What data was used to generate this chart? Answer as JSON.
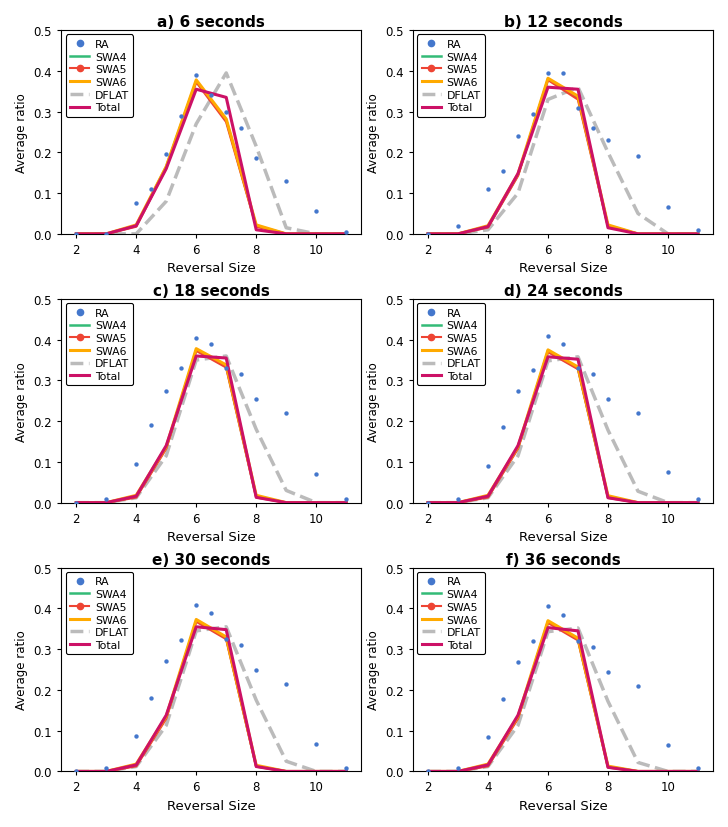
{
  "titles": [
    "a) 6 seconds",
    "b) 12 seconds",
    "c) 18 seconds",
    "d) 24 seconds",
    "e) 30 seconds",
    "f) 36 seconds"
  ],
  "x": [
    2,
    3,
    4,
    4.5,
    5,
    5.5,
    6,
    6.5,
    7,
    7.5,
    8,
    9,
    10,
    11
  ],
  "SWA4": {
    "6": [
      0.0,
      0.0,
      0.02,
      0.075,
      0.165,
      0.25,
      0.375,
      0.37,
      0.28,
      0.17,
      0.02,
      0.0,
      0.0,
      0.0
    ],
    "12": [
      0.0,
      0.0,
      0.018,
      0.06,
      0.145,
      0.245,
      0.38,
      0.38,
      0.335,
      0.255,
      0.02,
      0.0,
      0.0,
      0.0
    ],
    "18": [
      0.0,
      0.0,
      0.015,
      0.055,
      0.135,
      0.24,
      0.375,
      0.375,
      0.335,
      0.245,
      0.015,
      0.0,
      0.0,
      0.0
    ],
    "24": [
      0.0,
      0.0,
      0.015,
      0.055,
      0.135,
      0.24,
      0.373,
      0.373,
      0.33,
      0.242,
      0.014,
      0.0,
      0.0,
      0.0
    ],
    "30": [
      0.0,
      0.0,
      0.015,
      0.055,
      0.133,
      0.238,
      0.37,
      0.37,
      0.328,
      0.24,
      0.013,
      0.0,
      0.0,
      0.0
    ],
    "36": [
      0.0,
      0.0,
      0.015,
      0.055,
      0.133,
      0.238,
      0.368,
      0.368,
      0.325,
      0.238,
      0.012,
      0.0,
      0.0,
      0.0
    ]
  },
  "SWA5": {
    "6": [
      0.0,
      0.0,
      0.018,
      0.073,
      0.162,
      0.248,
      0.373,
      0.368,
      0.275,
      0.168,
      0.018,
      0.0,
      0.0,
      0.0
    ],
    "12": [
      0.0,
      0.0,
      0.016,
      0.058,
      0.143,
      0.243,
      0.378,
      0.378,
      0.33,
      0.25,
      0.018,
      0.0,
      0.0,
      0.0
    ],
    "18": [
      0.0,
      0.0,
      0.013,
      0.053,
      0.133,
      0.238,
      0.373,
      0.373,
      0.332,
      0.243,
      0.013,
      0.0,
      0.0,
      0.0
    ],
    "24": [
      0.0,
      0.0,
      0.013,
      0.053,
      0.133,
      0.238,
      0.37,
      0.37,
      0.328,
      0.24,
      0.012,
      0.0,
      0.0,
      0.0
    ],
    "30": [
      0.0,
      0.0,
      0.013,
      0.053,
      0.13,
      0.235,
      0.368,
      0.368,
      0.325,
      0.235,
      0.012,
      0.0,
      0.0,
      0.0
    ],
    "36": [
      0.0,
      0.0,
      0.013,
      0.053,
      0.13,
      0.233,
      0.365,
      0.365,
      0.322,
      0.232,
      0.01,
      0.0,
      0.0,
      0.0
    ]
  },
  "SWA6": {
    "6": [
      0.0,
      0.0,
      0.022,
      0.076,
      0.165,
      0.252,
      0.378,
      0.372,
      0.282,
      0.172,
      0.022,
      0.0,
      0.0,
      0.0
    ],
    "12": [
      0.0,
      0.0,
      0.02,
      0.062,
      0.147,
      0.248,
      0.382,
      0.382,
      0.338,
      0.258,
      0.022,
      0.0,
      0.0,
      0.0
    ],
    "18": [
      0.0,
      0.0,
      0.018,
      0.057,
      0.137,
      0.242,
      0.378,
      0.378,
      0.338,
      0.248,
      0.018,
      0.0,
      0.0,
      0.0
    ],
    "24": [
      0.0,
      0.0,
      0.018,
      0.057,
      0.137,
      0.242,
      0.375,
      0.375,
      0.333,
      0.245,
      0.017,
      0.0,
      0.0,
      0.0
    ],
    "30": [
      0.0,
      0.0,
      0.018,
      0.057,
      0.135,
      0.24,
      0.373,
      0.373,
      0.33,
      0.242,
      0.015,
      0.0,
      0.0,
      0.0
    ],
    "36": [
      0.0,
      0.0,
      0.018,
      0.057,
      0.135,
      0.24,
      0.37,
      0.37,
      0.327,
      0.235,
      0.013,
      0.0,
      0.0,
      0.0
    ]
  },
  "Total": {
    "6": [
      0.0,
      0.0,
      0.02,
      0.07,
      0.16,
      0.248,
      0.355,
      0.385,
      0.335,
      0.225,
      0.01,
      0.0,
      0.0,
      0.0
    ],
    "12": [
      0.0,
      0.0,
      0.018,
      0.058,
      0.148,
      0.248,
      0.36,
      0.39,
      0.355,
      0.27,
      0.015,
      0.0,
      0.0,
      0.0
    ],
    "18": [
      0.0,
      0.0,
      0.016,
      0.055,
      0.14,
      0.245,
      0.36,
      0.39,
      0.355,
      0.265,
      0.013,
      0.0,
      0.0,
      0.0
    ],
    "24": [
      0.0,
      0.0,
      0.016,
      0.055,
      0.14,
      0.245,
      0.358,
      0.388,
      0.352,
      0.26,
      0.012,
      0.0,
      0.0,
      0.0
    ],
    "30": [
      0.0,
      0.0,
      0.016,
      0.055,
      0.138,
      0.243,
      0.355,
      0.385,
      0.348,
      0.255,
      0.012,
      0.0,
      0.0,
      0.0
    ],
    "36": [
      0.0,
      0.0,
      0.016,
      0.055,
      0.138,
      0.243,
      0.353,
      0.383,
      0.345,
      0.25,
      0.01,
      0.0,
      0.0,
      0.0
    ]
  },
  "DFLAT": {
    "6": [
      0.0,
      0.0,
      0.0,
      0.01,
      0.08,
      0.17,
      0.27,
      0.33,
      0.395,
      0.385,
      0.215,
      0.015,
      0.0,
      0.0
    ],
    "12": [
      0.0,
      0.0,
      0.01,
      0.03,
      0.1,
      0.21,
      0.33,
      0.35,
      0.36,
      0.34,
      0.2,
      0.05,
      0.0,
      0.0
    ],
    "18": [
      0.0,
      0.0,
      0.012,
      0.04,
      0.115,
      0.22,
      0.35,
      0.365,
      0.36,
      0.33,
      0.18,
      0.03,
      0.0,
      0.0
    ],
    "24": [
      0.0,
      0.0,
      0.012,
      0.04,
      0.115,
      0.22,
      0.348,
      0.362,
      0.358,
      0.328,
      0.178,
      0.028,
      0.0,
      0.0
    ],
    "30": [
      0.0,
      0.0,
      0.012,
      0.04,
      0.113,
      0.218,
      0.345,
      0.36,
      0.355,
      0.325,
      0.175,
      0.025,
      0.0,
      0.0
    ],
    "36": [
      0.0,
      0.0,
      0.012,
      0.04,
      0.113,
      0.218,
      0.343,
      0.358,
      0.352,
      0.322,
      0.172,
      0.022,
      0.0,
      0.0
    ]
  },
  "RA": {
    "6": [
      0.0,
      0.0,
      0.075,
      0.11,
      0.195,
      0.29,
      0.39,
      0.34,
      0.3,
      0.26,
      0.185,
      0.13,
      0.055,
      0.005
    ],
    "12": [
      0.0,
      0.02,
      0.11,
      0.155,
      0.24,
      0.295,
      0.395,
      0.395,
      0.31,
      0.26,
      0.23,
      0.19,
      0.065,
      0.01
    ],
    "18": [
      0.0,
      0.01,
      0.095,
      0.19,
      0.275,
      0.33,
      0.405,
      0.39,
      0.33,
      0.315,
      0.255,
      0.22,
      0.07,
      0.01
    ],
    "24": [
      0.0,
      0.01,
      0.09,
      0.185,
      0.275,
      0.325,
      0.41,
      0.39,
      0.33,
      0.315,
      0.255,
      0.22,
      0.075,
      0.01
    ],
    "30": [
      0.0,
      0.008,
      0.088,
      0.18,
      0.27,
      0.322,
      0.408,
      0.388,
      0.325,
      0.31,
      0.248,
      0.215,
      0.068,
      0.008
    ],
    "36": [
      0.0,
      0.008,
      0.085,
      0.178,
      0.268,
      0.32,
      0.405,
      0.385,
      0.32,
      0.305,
      0.245,
      0.21,
      0.065,
      0.008
    ]
  },
  "colors": {
    "RA": "#4477CC",
    "SWA4": "#33BB77",
    "SWA5": "#EE4433",
    "SWA6": "#FFAA00",
    "DFLAT": "#BBBBBB",
    "Total": "#CC1166"
  },
  "ylabel": "Average ratio",
  "xlabel": "Reversal Size",
  "ylim": [
    0.0,
    0.5
  ],
  "xlim": [
    1.5,
    11.5
  ],
  "xticks": [
    2,
    4,
    6,
    8,
    10
  ],
  "yticks": [
    0.0,
    0.1,
    0.2,
    0.3,
    0.4,
    0.5
  ]
}
